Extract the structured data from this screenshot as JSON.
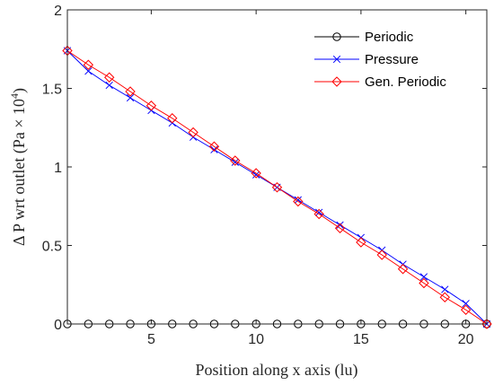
{
  "chart_data": {
    "type": "line",
    "xlabel": "Position along x axis (lu)",
    "ylabel": "Δ P wrt outlet (Pa × 10",
    "ylabel_exponent": "4",
    "ylabel_close": ")",
    "xlim": [
      1,
      21
    ],
    "ylim": [
      0,
      2
    ],
    "xticks": [
      5,
      10,
      15,
      20
    ],
    "yticks": [
      0,
      0.5,
      1,
      1.5,
      2
    ],
    "grid": false,
    "legend_position": "top-right",
    "x": [
      1,
      2,
      3,
      4,
      5,
      6,
      7,
      8,
      9,
      10,
      11,
      12,
      13,
      14,
      15,
      16,
      17,
      18,
      19,
      20,
      21
    ],
    "series": [
      {
        "name": "Periodic",
        "color": "#000000",
        "marker": "circle",
        "values": [
          0,
          0,
          0,
          0,
          0,
          0,
          0,
          0,
          0,
          0,
          0,
          0,
          0,
          0,
          0,
          0,
          0,
          0,
          0,
          0,
          0
        ]
      },
      {
        "name": "Pressure",
        "color": "#0000ff",
        "marker": "x",
        "values": [
          1.74,
          1.61,
          1.52,
          1.44,
          1.36,
          1.28,
          1.19,
          1.11,
          1.03,
          0.95,
          0.87,
          0.79,
          0.71,
          0.63,
          0.55,
          0.47,
          0.38,
          0.3,
          0.22,
          0.13,
          0.0
        ]
      },
      {
        "name": "Gen. Periodic",
        "color": "#ff0000",
        "marker": "diamond",
        "values": [
          1.74,
          1.65,
          1.57,
          1.48,
          1.39,
          1.31,
          1.22,
          1.13,
          1.04,
          0.96,
          0.87,
          0.78,
          0.7,
          0.61,
          0.52,
          0.44,
          0.35,
          0.26,
          0.17,
          0.09,
          0.0
        ]
      }
    ]
  }
}
